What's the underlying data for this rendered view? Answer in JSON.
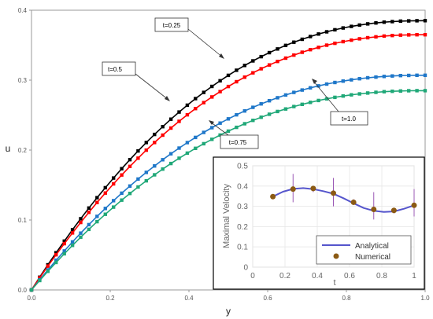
{
  "chart_data": [
    {
      "type": "line",
      "xlabel": "y",
      "ylabel": "u",
      "xlim": [
        0,
        1.0
      ],
      "ylim": [
        0,
        0.4
      ],
      "x_ticks": [
        "0.0",
        "0.2",
        "0.4",
        "0.6",
        "0.8",
        "1.0"
      ],
      "y_ticks": [
        "0.0",
        "0.1",
        "0.2",
        "0.3",
        "0.4"
      ],
      "grid": false,
      "series": [
        {
          "name": "t=0.25",
          "color": "#000000",
          "u_max": 0.385
        },
        {
          "name": "t=0.5",
          "color": "#ff0000",
          "u_max": 0.365
        },
        {
          "name": "t=1.0",
          "color": "#1f77c9",
          "u_max": 0.307
        },
        {
          "name": "t=0.75",
          "color": "#20a878",
          "u_max": 0.285
        }
      ],
      "annotations": [
        {
          "text": "t=0.25",
          "points_to": [
            0.48,
            0.33
          ]
        },
        {
          "text": "t=0.5",
          "points_to": [
            0.35,
            0.271
          ]
        },
        {
          "text": "t=1.0",
          "points_to": [
            0.7,
            0.302
          ]
        },
        {
          "text": "t=0.75",
          "points_to": [
            0.45,
            0.241
          ]
        }
      ]
    },
    {
      "type": "line",
      "xlabel": "t",
      "ylabel": "Maximal Velocity",
      "xlim": [
        0,
        1
      ],
      "ylim": [
        0,
        0.5
      ],
      "x_ticks": [
        "0",
        "0.2",
        "0.4",
        "0.6",
        "0.8",
        "1"
      ],
      "y_ticks": [
        "0",
        "0.1",
        "0.2",
        "0.3",
        "0.4",
        "0.5"
      ],
      "grid": true,
      "legend_position": "bottom-right",
      "series": [
        {
          "name": "Analytical",
          "color": "#5555cc",
          "x": [
            0.125,
            0.1875,
            0.25,
            0.3125,
            0.375,
            0.4375,
            0.5,
            0.5625,
            0.625,
            0.6875,
            0.75,
            0.8125,
            0.875,
            0.9375,
            1.0
          ],
          "y": [
            0.348,
            0.372,
            0.386,
            0.39,
            0.385,
            0.375,
            0.362,
            0.34,
            0.315,
            0.292,
            0.278,
            0.272,
            0.275,
            0.288,
            0.305
          ]
        },
        {
          "name": "Numerical",
          "color": "#8b5a14",
          "x": [
            0.125,
            0.25,
            0.375,
            0.5,
            0.625,
            0.75,
            0.875,
            1.0
          ],
          "y": [
            0.348,
            0.385,
            0.388,
            0.365,
            0.32,
            0.285,
            0.28,
            0.305
          ],
          "error_low": [
            0.34,
            0.32,
            0.37,
            0.3,
            0.31,
            0.235,
            0.265,
            0.25
          ],
          "error_high": [
            0.355,
            0.46,
            0.395,
            0.44,
            0.335,
            0.37,
            0.29,
            0.385
          ]
        }
      ]
    }
  ]
}
